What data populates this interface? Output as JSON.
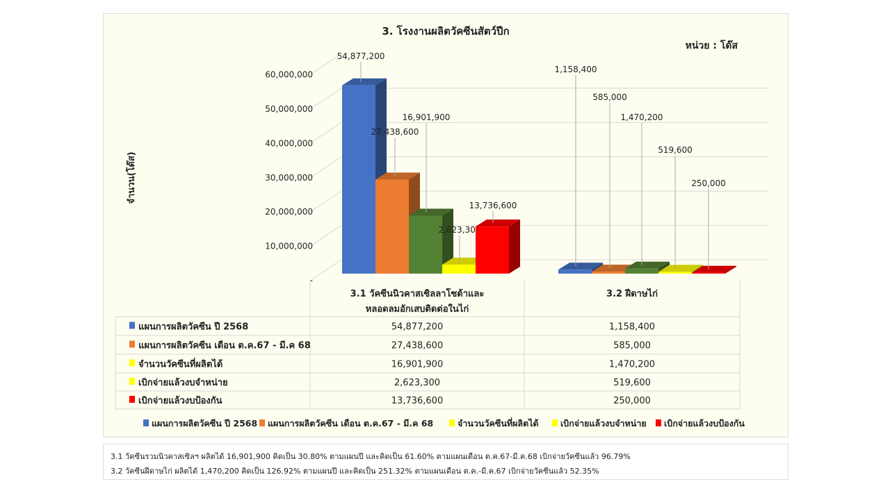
{
  "chart_data": {
    "type": "bar",
    "title": "3. โรงงานผลิตวัคซีนสัตว์ปีก",
    "unit_label": "หน่วย : โด๊ส",
    "ylabel": "จำนวน(โด๊ส)",
    "ylim": [
      0,
      60000000
    ],
    "yticks": [
      "-",
      "10,000,000",
      "20,000,000",
      "30,000,000",
      "40,000,000",
      "50,000,000",
      "60,000,000"
    ],
    "grid": true,
    "legend_placement": "bottom",
    "categories": [
      "3.1 วัคซีนนิวคาสเซิลลาโซต้าและ หลอดลมอักเสบติดต่อในไก่",
      "3.2 ฝีดาษไก่"
    ],
    "category_lines": [
      [
        "3.1 วัคซีนนิวคาสเซิลลาโซต้าและ",
        "หลอดลมอักเสบติดต่อในไก่"
      ],
      [
        "3.2 ฝีดาษไก่"
      ]
    ],
    "series": [
      {
        "name": "แผนการผลิตวัคซีน ปี 2568",
        "values": [
          54877200,
          1158400
        ],
        "labels": [
          "54,877,200",
          "1,158,400"
        ],
        "color": "#4472c4",
        "legend_color": "#4472c4"
      },
      {
        "name": "แผนการผลิตวัคซีน เดือน ต.ค.67 - มี.ค 68",
        "values": [
          27438600,
          585000
        ],
        "labels": [
          "27,438,600",
          "585,000"
        ],
        "color": "#ed7d31",
        "legend_color": "#ed7d31"
      },
      {
        "name": "จำนวนวัคซีนที่ผลิตได้",
        "values": [
          16901900,
          1470200
        ],
        "labels": [
          "16,901,900",
          "1,470,200"
        ],
        "color": "#548235",
        "legend_color": "#ffff00"
      },
      {
        "name": "เบิกจ่ายแล้วงบจำหน่าย",
        "values": [
          2623300,
          519600
        ],
        "labels": [
          "2,623,300",
          "519,600"
        ],
        "color": "#ffff00",
        "legend_color": "#ffff00"
      },
      {
        "name": "เบิกจ่ายแล้วงบป้องกัน",
        "values": [
          13736600,
          250000
        ],
        "labels": [
          "13,736,600",
          "250,000"
        ],
        "color": "#ff0000",
        "legend_color": "#ff0000"
      }
    ]
  },
  "notes": [
    "3.1 วัคซีนรวมนิวคาสเซิลฯ  ผลิตได้  16,901,900  คิดเป็น  30.80%  ตามแผนปี  และคิดเป็น  61.60%  ตามแผนเดือน  ต.ค.67-มี.ค.68   เบิกจ่ายวัคซีนแล้ว   96.79%",
    "3.2 วัคซีนฝีดาษไก่  ผลิตได้  1,470,200  คิดเป็น  126.92%  ตามแผนปี  และคิดเป็น  251.32%  ตามแผนเดือน  ต.ค.-มี.ค.67  เบิกจ่ายวัคซีนแล้ว   52.35%"
  ]
}
